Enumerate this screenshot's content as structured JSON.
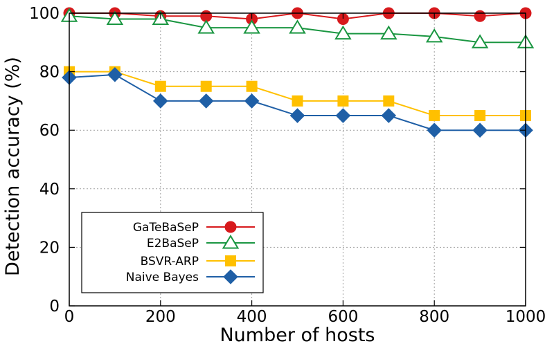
{
  "chart_data": {
    "type": "line",
    "title": "",
    "xlabel": "Number of hosts",
    "ylabel": "Detection accuracy (%)",
    "xlim": [
      0,
      1000
    ],
    "ylim": [
      0,
      100
    ],
    "xticks": [
      0,
      200,
      400,
      600,
      800,
      1000
    ],
    "yticks": [
      0,
      20,
      40,
      60,
      80,
      100
    ],
    "grid": true,
    "legend_position": "bottom-left",
    "x": [
      0,
      100,
      200,
      300,
      400,
      500,
      600,
      700,
      800,
      900,
      1000
    ],
    "series": [
      {
        "name": "GaTeBaSeP",
        "color": "#d7191c",
        "marker": "circle",
        "values": [
          100,
          100,
          99,
          99,
          98,
          100,
          98,
          100,
          100,
          99,
          100
        ]
      },
      {
        "name": "E2BaSeP",
        "color": "#1a9641",
        "marker": "triangle-open",
        "values": [
          99,
          98,
          98,
          95,
          95,
          95,
          93,
          93,
          92,
          90,
          90
        ]
      },
      {
        "name": "BSVR-ARP",
        "color": "#ffc000",
        "marker": "square",
        "values": [
          80,
          80,
          75,
          75,
          75,
          70,
          70,
          70,
          65,
          65,
          65
        ]
      },
      {
        "name": "Naive Bayes",
        "color": "#1f5fa6",
        "marker": "diamond",
        "values": [
          78,
          79,
          70,
          70,
          70,
          65,
          65,
          65,
          60,
          60,
          60
        ]
      }
    ]
  }
}
